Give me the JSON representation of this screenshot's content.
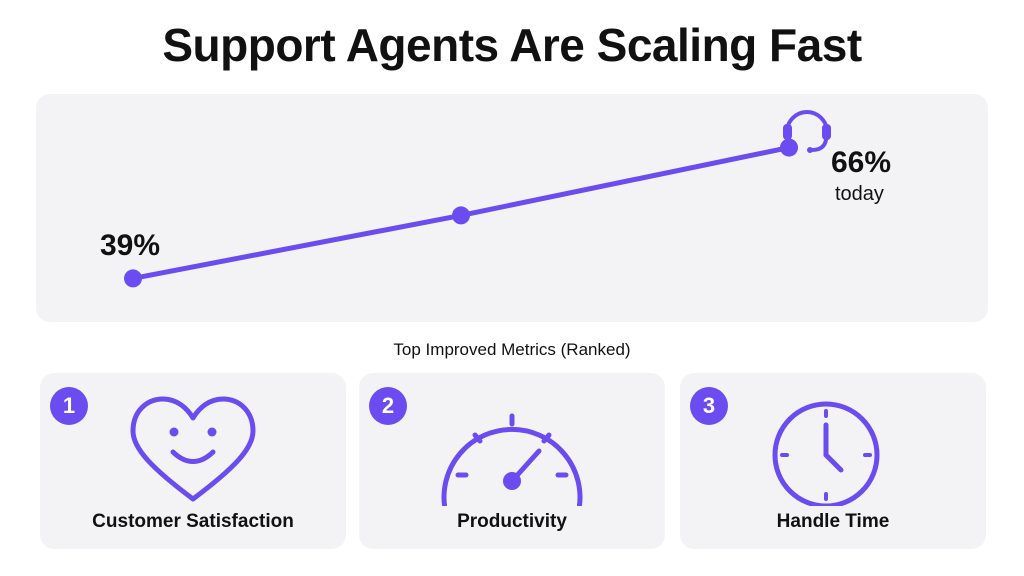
{
  "title": "Support Agents Are Scaling Fast",
  "colors": {
    "accent": "#6a4cf0",
    "panel": "#f3f3f5",
    "text": "#111111"
  },
  "chart_data": {
    "type": "line",
    "title": "Support Agents Are Scaling Fast",
    "xlabel": "",
    "ylabel": "",
    "x": [
      "",
      "",
      "today"
    ],
    "values": [
      39,
      52,
      66
    ],
    "data_labels": [
      "39%",
      "",
      "66%"
    ],
    "end_sublabel": "today",
    "ylim": [
      30,
      75
    ],
    "grid": false,
    "icon": "headset-icon"
  },
  "metrics": {
    "heading": "Top Improved Metrics (Ranked)",
    "items": [
      {
        "rank": "1",
        "label": "Customer Satisfaction",
        "icon": "smiling-heart-icon"
      },
      {
        "rank": "2",
        "label": "Productivity",
        "icon": "speedometer-icon"
      },
      {
        "rank": "3",
        "label": "Handle Time",
        "icon": "clock-icon"
      }
    ]
  }
}
